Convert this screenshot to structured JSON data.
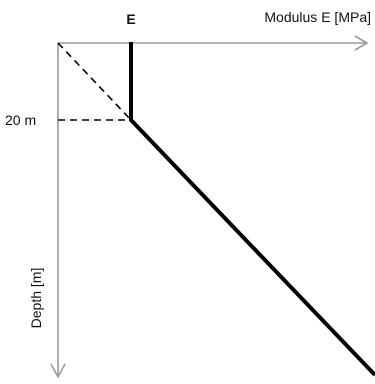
{
  "labels": {
    "top_marker": "E",
    "x_axis": "Modulus E [MPa]",
    "y_axis": "Depth [m]",
    "depth_marker": "20 m"
  },
  "colors": {
    "axis": "#9a9a9a",
    "profile": "#000000",
    "dashed": "#000000"
  }
}
